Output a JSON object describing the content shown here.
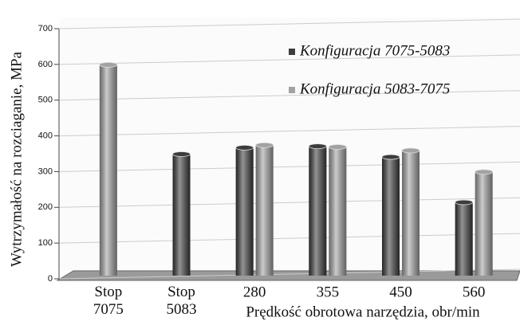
{
  "chart_data": {
    "type": "bar",
    "y_label": "Wytrzymałość na rozciaganie, MPa",
    "x_label": "Prędkość obrotowa narzędzia, obr/min",
    "categories": [
      "Stop 7075",
      "Stop 5083",
      "280",
      "355",
      "450",
      "560"
    ],
    "series": [
      {
        "name": "Konfiguracja 7075-5083",
        "color": "#3c3c3c",
        "values": [
          null,
          340,
          358,
          362,
          332,
          205
        ]
      },
      {
        "name": "Konfiguracja 5083-7075",
        "color": "#a2a2a2",
        "values": [
          590,
          null,
          365,
          360,
          350,
          290
        ]
      }
    ],
    "ylim": [
      0,
      700
    ],
    "yticks": [
      0,
      100,
      200,
      300,
      400,
      500,
      600,
      700
    ],
    "grid": true
  }
}
